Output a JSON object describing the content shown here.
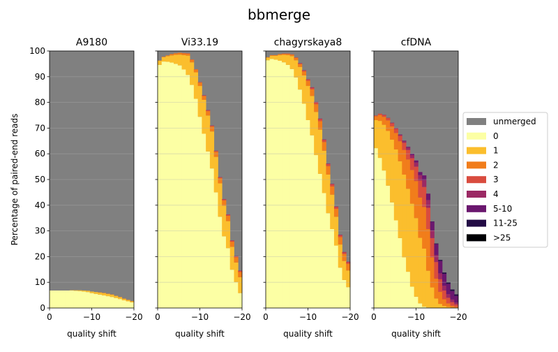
{
  "figure": {
    "suptitle": "bbmerge",
    "ylabel": "Percentage of paired-end reads",
    "xlabel": "quality shift"
  },
  "legend": {
    "position": "right",
    "entries": [
      {
        "label": "unmerged",
        "color": "#808080"
      },
      {
        "label": "0",
        "color": "#fcffa4"
      },
      {
        "label": "1",
        "color": "#fbbe2d"
      },
      {
        "label": "2",
        "color": "#f17d1b"
      },
      {
        "label": "3",
        "color": "#d94c3f"
      },
      {
        "label": "4",
        "color": "#9b2964"
      },
      {
        "label": "5-10",
        "color": "#6a176e"
      },
      {
        "label": "11-25",
        "color": "#230c45"
      },
      {
        "label": ">25",
        "color": "#000004"
      }
    ]
  },
  "chart_data": [
    {
      "type": "area",
      "title": "A9180",
      "x": [
        0,
        -1,
        -2,
        -3,
        -4,
        -5,
        -6,
        -7,
        -8,
        -9,
        -10,
        -11,
        -12,
        -13,
        -14,
        -15,
        -16,
        -17,
        -18,
        -19,
        -20
      ],
      "xticks": [
        "0",
        "−10",
        "−20"
      ],
      "yticks": [
        "0",
        "10",
        "20",
        "30",
        "40",
        "50",
        "60",
        "70",
        "80",
        "90",
        "100"
      ],
      "xlim": [
        0,
        -20
      ],
      "ylim": [
        0,
        100
      ],
      "grid": "horizontal",
      "stacked": true,
      "series": [
        {
          "name": "0",
          "values": [
            6.8,
            6.8,
            6.8,
            6.8,
            6.8,
            6.8,
            6.7,
            6.6,
            6.4,
            6.2,
            5.8,
            5.5,
            5.2,
            4.9,
            4.6,
            4.3,
            3.9,
            3.5,
            3.0,
            2.6,
            2.2
          ]
        },
        {
          "name": "1",
          "values": [
            0,
            0,
            0,
            0,
            0,
            0.1,
            0.2,
            0.3,
            0.4,
            0.5,
            0.6,
            0.7,
            0.8,
            0.9,
            0.9,
            0.9,
            0.8,
            0.7,
            0.6,
            0.5,
            0.4
          ]
        },
        {
          "name": "2",
          "values": [
            0,
            0,
            0,
            0,
            0,
            0,
            0,
            0,
            0,
            0,
            0,
            0,
            0.1,
            0.1,
            0.1,
            0.1,
            0.1,
            0.1,
            0.1,
            0.1,
            0.1
          ]
        },
        {
          "name": "3",
          "values": [
            0,
            0,
            0,
            0,
            0,
            0,
            0,
            0,
            0,
            0,
            0,
            0,
            0,
            0,
            0,
            0,
            0,
            0,
            0,
            0,
            0
          ]
        },
        {
          "name": "4",
          "values": [
            0,
            0,
            0,
            0,
            0,
            0,
            0,
            0,
            0,
            0,
            0,
            0,
            0,
            0,
            0,
            0,
            0,
            0,
            0,
            0,
            0
          ]
        },
        {
          "name": "5-10",
          "values": [
            0,
            0,
            0,
            0,
            0,
            0,
            0,
            0,
            0,
            0,
            0,
            0,
            0,
            0,
            0,
            0,
            0,
            0,
            0,
            0,
            0
          ]
        },
        {
          "name": "11-25",
          "values": [
            0,
            0,
            0,
            0,
            0,
            0,
            0,
            0,
            0,
            0,
            0,
            0,
            0,
            0,
            0,
            0,
            0,
            0,
            0,
            0,
            0
          ]
        },
        {
          "name": ">25",
          "values": [
            0,
            0,
            0,
            0,
            0,
            0,
            0,
            0,
            0,
            0,
            0,
            0,
            0,
            0,
            0,
            0,
            0,
            0,
            0,
            0,
            0
          ]
        }
      ]
    },
    {
      "type": "area",
      "title": "Vi33.19",
      "x": [
        0,
        -1,
        -2,
        -3,
        -4,
        -5,
        -6,
        -7,
        -8,
        -9,
        -10,
        -11,
        -12,
        -13,
        -14,
        -15,
        -16,
        -17,
        -18,
        -19,
        -20
      ],
      "xticks": [
        "0",
        "−10",
        "−20"
      ],
      "xlim": [
        0,
        -20
      ],
      "ylim": [
        0,
        100
      ],
      "grid": "horizontal",
      "stacked": true,
      "series": [
        {
          "name": "0",
          "values": [
            94.6,
            95.9,
            95.8,
            95.5,
            95.0,
            94.4,
            92.8,
            90.7,
            86.8,
            81.4,
            74.4,
            67.8,
            60.9,
            54.3,
            45.0,
            35.5,
            27.9,
            23.3,
            14.9,
            10.1,
            5.8
          ]
        },
        {
          "name": "1",
          "values": [
            1.6,
            1.7,
            2.2,
            2.8,
            3.5,
            4.2,
            5.6,
            7.5,
            8.8,
            10.3,
            12.0,
            13.2,
            14.0,
            14.4,
            13.8,
            13.0,
            11.9,
            10.5,
            8.9,
            7.6,
            6.2
          ]
        },
        {
          "name": "2",
          "values": [
            0.1,
            0.2,
            0.3,
            0.5,
            0.6,
            0.7,
            0.7,
            0.8,
            1.0,
            1.1,
            1.3,
            1.5,
            1.7,
            1.9,
            2.0,
            2.0,
            2.1,
            2.1,
            2.0,
            2.0,
            2.0
          ]
        },
        {
          "name": "3",
          "values": [
            0,
            0,
            0,
            0,
            0,
            0,
            0.1,
            0.1,
            0.1,
            0.1,
            0.2,
            0.2,
            0.3,
            0.3,
            0.3,
            0.3,
            0.4,
            0.4,
            0.4,
            0.4,
            0.4
          ]
        },
        {
          "name": "4",
          "values": [
            0,
            0,
            0,
            0,
            0,
            0,
            0,
            0,
            0,
            0,
            0,
            0.1,
            0.1,
            0.1,
            0.1,
            0.1,
            0.1,
            0.1,
            0.1,
            0.1,
            0.1
          ]
        },
        {
          "name": "5-10",
          "values": [
            0,
            0,
            0,
            0,
            0,
            0,
            0,
            0,
            0,
            0,
            0,
            0,
            0,
            0,
            0,
            0,
            0,
            0,
            0,
            0,
            0
          ]
        },
        {
          "name": "11-25",
          "values": [
            0,
            0,
            0,
            0,
            0,
            0,
            0,
            0,
            0,
            0,
            0,
            0,
            0,
            0,
            0,
            0,
            0,
            0,
            0,
            0,
            0
          ]
        },
        {
          "name": ">25",
          "values": [
            0,
            0,
            0,
            0,
            0,
            0,
            0,
            0,
            0,
            0,
            0,
            0,
            0,
            0,
            0,
            0,
            0,
            0,
            0,
            0,
            0
          ]
        }
      ]
    },
    {
      "type": "area",
      "title": "chagyrskaya8",
      "x": [
        0,
        -1,
        -2,
        -3,
        -4,
        -5,
        -6,
        -7,
        -8,
        -9,
        -10,
        -11,
        -12,
        -13,
        -14,
        -15,
        -16,
        -17,
        -18,
        -19,
        -20
      ],
      "xticks": [
        "0",
        "−10",
        "−20"
      ],
      "xlim": [
        0,
        -20
      ],
      "ylim": [
        0,
        100
      ],
      "grid": "horizontal",
      "stacked": true,
      "series": [
        {
          "name": "0",
          "values": [
            96.4,
            96.9,
            96.6,
            96.2,
            95.6,
            94.6,
            93.0,
            89.7,
            85.0,
            79.5,
            73.1,
            67.2,
            59.5,
            52.2,
            44.7,
            36.9,
            30.7,
            24.3,
            15.7,
            10.9,
            8.1
          ]
        },
        {
          "name": "1",
          "values": [
            1.0,
            1.2,
            1.5,
            2.2,
            2.9,
            3.8,
            5.0,
            6.7,
            8.8,
            11.0,
            13.3,
            15.3,
            16.8,
            17.2,
            16.5,
            15.0,
            13.4,
            11.2,
            9.0,
            7.4,
            6.5
          ]
        },
        {
          "name": "2",
          "values": [
            0.2,
            0.3,
            0.3,
            0.4,
            0.4,
            0.5,
            0.6,
            0.9,
            1.1,
            1.5,
            2.0,
            2.6,
            3.0,
            3.3,
            3.4,
            3.3,
            3.2,
            3.1,
            2.9,
            2.7,
            2.6
          ]
        },
        {
          "name": "3",
          "values": [
            0,
            0,
            0,
            0,
            0.1,
            0.1,
            0.1,
            0.2,
            0.3,
            0.4,
            0.5,
            0.6,
            0.7,
            0.8,
            0.8,
            0.8,
            0.8,
            0.7,
            0.7,
            0.6,
            0.6
          ]
        },
        {
          "name": "4",
          "values": [
            0,
            0,
            0,
            0,
            0,
            0,
            0,
            0,
            0.1,
            0.1,
            0.1,
            0.2,
            0.2,
            0.2,
            0.2,
            0.2,
            0.2,
            0.2,
            0.2,
            0.2,
            0.2
          ]
        },
        {
          "name": "5-10",
          "values": [
            0,
            0,
            0,
            0,
            0,
            0,
            0,
            0,
            0,
            0,
            0,
            0,
            0,
            0,
            0,
            0,
            0,
            0,
            0,
            0,
            0
          ]
        },
        {
          "name": "11-25",
          "values": [
            0,
            0,
            0,
            0,
            0,
            0,
            0,
            0,
            0,
            0,
            0,
            0,
            0,
            0,
            0,
            0,
            0,
            0,
            0,
            0,
            0
          ]
        },
        {
          "name": ">25",
          "values": [
            0,
            0,
            0,
            0,
            0,
            0,
            0,
            0,
            0,
            0,
            0,
            0,
            0,
            0,
            0,
            0,
            0,
            0,
            0,
            0,
            0
          ]
        }
      ]
    },
    {
      "type": "area",
      "title": "cfDNA",
      "x": [
        0,
        -1,
        -2,
        -3,
        -4,
        -5,
        -6,
        -7,
        -8,
        -9,
        -10,
        -11,
        -12,
        -13,
        -14,
        -15,
        -16,
        -17,
        -18,
        -19,
        -20
      ],
      "xticks": [
        "0",
        "−10",
        "−20"
      ],
      "xlim": [
        0,
        -20
      ],
      "ylim": [
        0,
        100
      ],
      "grid": "horizontal",
      "stacked": true,
      "series": [
        {
          "name": "0",
          "values": [
            62.2,
            58.4,
            53.5,
            47.6,
            41.1,
            34.1,
            27.2,
            19.7,
            14.1,
            8.3,
            4.4,
            1.8,
            0.5,
            0.2,
            0.1,
            0,
            0,
            0,
            0,
            0,
            0
          ]
        },
        {
          "name": "1",
          "values": [
            10.9,
            14.4,
            17.8,
            21.3,
            24.4,
            27.6,
            29.9,
            32.2,
            32.3,
            32.3,
            30.6,
            25.5,
            22.6,
            14.3,
            7.9,
            3.7,
            1.6,
            0.8,
            0.4,
            0.2,
            0.1
          ]
        },
        {
          "name": "2",
          "values": [
            1.5,
            2.3,
            3.1,
            4.1,
            5.2,
            6.4,
            7.8,
            9.6,
            11.4,
            13.1,
            14.4,
            15.7,
            16.2,
            16.2,
            11.7,
            7.7,
            4.7,
            2.6,
            1.4,
            0.7,
            0.4
          ]
        },
        {
          "name": "3",
          "values": [
            0.3,
            0.5,
            0.7,
            0.9,
            1.2,
            1.6,
            2.1,
            2.8,
            3.7,
            4.6,
            5.6,
            6.6,
            7.8,
            8.3,
            7.5,
            6.5,
            4.9,
            3.4,
            2.2,
            1.4,
            0.9
          ]
        },
        {
          "name": "4",
          "values": [
            0,
            0,
            0.1,
            0.1,
            0.2,
            0.3,
            0.4,
            0.6,
            0.9,
            1.2,
            1.6,
            2.1,
            2.7,
            3.0,
            3.0,
            2.7,
            2.3,
            1.9,
            1.4,
            1.0,
            0.7
          ]
        },
        {
          "name": "5-10",
          "values": [
            0,
            0,
            0,
            0,
            0,
            0,
            0.1,
            0.2,
            0.3,
            0.5,
            0.8,
            1.2,
            1.8,
            2.5,
            3.4,
            4.3,
            4.8,
            4.6,
            4.0,
            3.3,
            2.6
          ]
        },
        {
          "name": "11-25",
          "values": [
            0,
            0,
            0,
            0,
            0,
            0,
            0,
            0,
            0,
            0,
            0,
            0,
            0,
            0,
            0.1,
            0.2,
            0.4,
            0.5,
            0.6,
            0.6,
            0.6
          ]
        },
        {
          "name": ">25",
          "values": [
            0,
            0,
            0,
            0,
            0,
            0,
            0,
            0,
            0,
            0,
            0,
            0,
            0,
            0,
            0,
            0,
            0,
            0,
            0,
            0,
            0
          ]
        }
      ]
    }
  ]
}
